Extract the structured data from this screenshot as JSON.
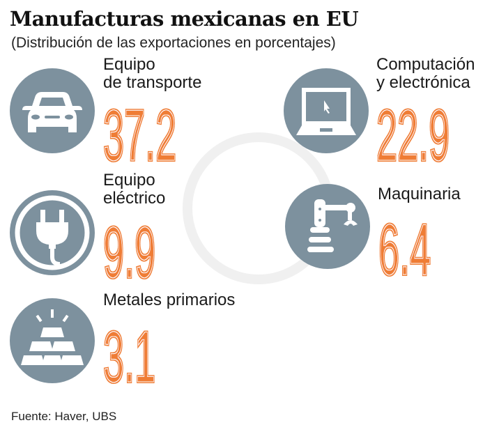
{
  "title": "Manufacturas mexicanas en EU",
  "subtitle": "(Distribución de las exportaciones en porcentajes)",
  "source": "Fuente: Haver, UBS",
  "colors": {
    "accent": "#ef7d35",
    "icon_circle": "#7d919e"
  },
  "chart_data": {
    "type": "table",
    "title": "Manufacturas mexicanas en EU",
    "subtitle": "(Distribución de las exportaciones en porcentajes)",
    "categories": [
      "Equipo de transporte",
      "Computación y electrónica",
      "Equipo eléctrico",
      "Maquinaria",
      "Metales primarios"
    ],
    "values": [
      37.2,
      22.9,
      9.9,
      6.4,
      3.1
    ]
  },
  "items": [
    {
      "line1": "Equipo",
      "line2": "de transporte",
      "value": "37.2",
      "icon": "car-icon"
    },
    {
      "line1": "Computación",
      "line2": "y electrónica",
      "value": "22.9",
      "icon": "laptop-icon"
    },
    {
      "line1": "Equipo",
      "line2": "eléctrico",
      "value": "9.9",
      "icon": "plug-icon"
    },
    {
      "line1": "Maquinaria",
      "line2": "",
      "value": "6.4",
      "icon": "robot-arm-icon"
    },
    {
      "line1": "Metales primarios",
      "line2": "",
      "value": "3.1",
      "icon": "gold-bars-icon"
    }
  ]
}
